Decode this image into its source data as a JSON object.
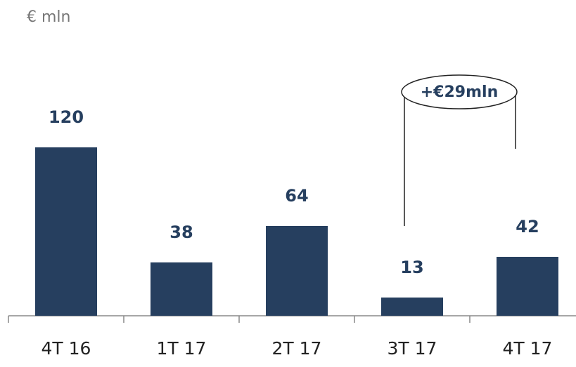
{
  "chart_data": {
    "type": "bar",
    "unit_label": "€ mln",
    "categories": [
      "4T 16",
      "1T 17",
      "2T 17",
      "3T 17",
      "4T 17"
    ],
    "values": [
      120,
      38,
      64,
      13,
      42
    ],
    "color": "#263f5f",
    "annotation": "+€29mln"
  }
}
